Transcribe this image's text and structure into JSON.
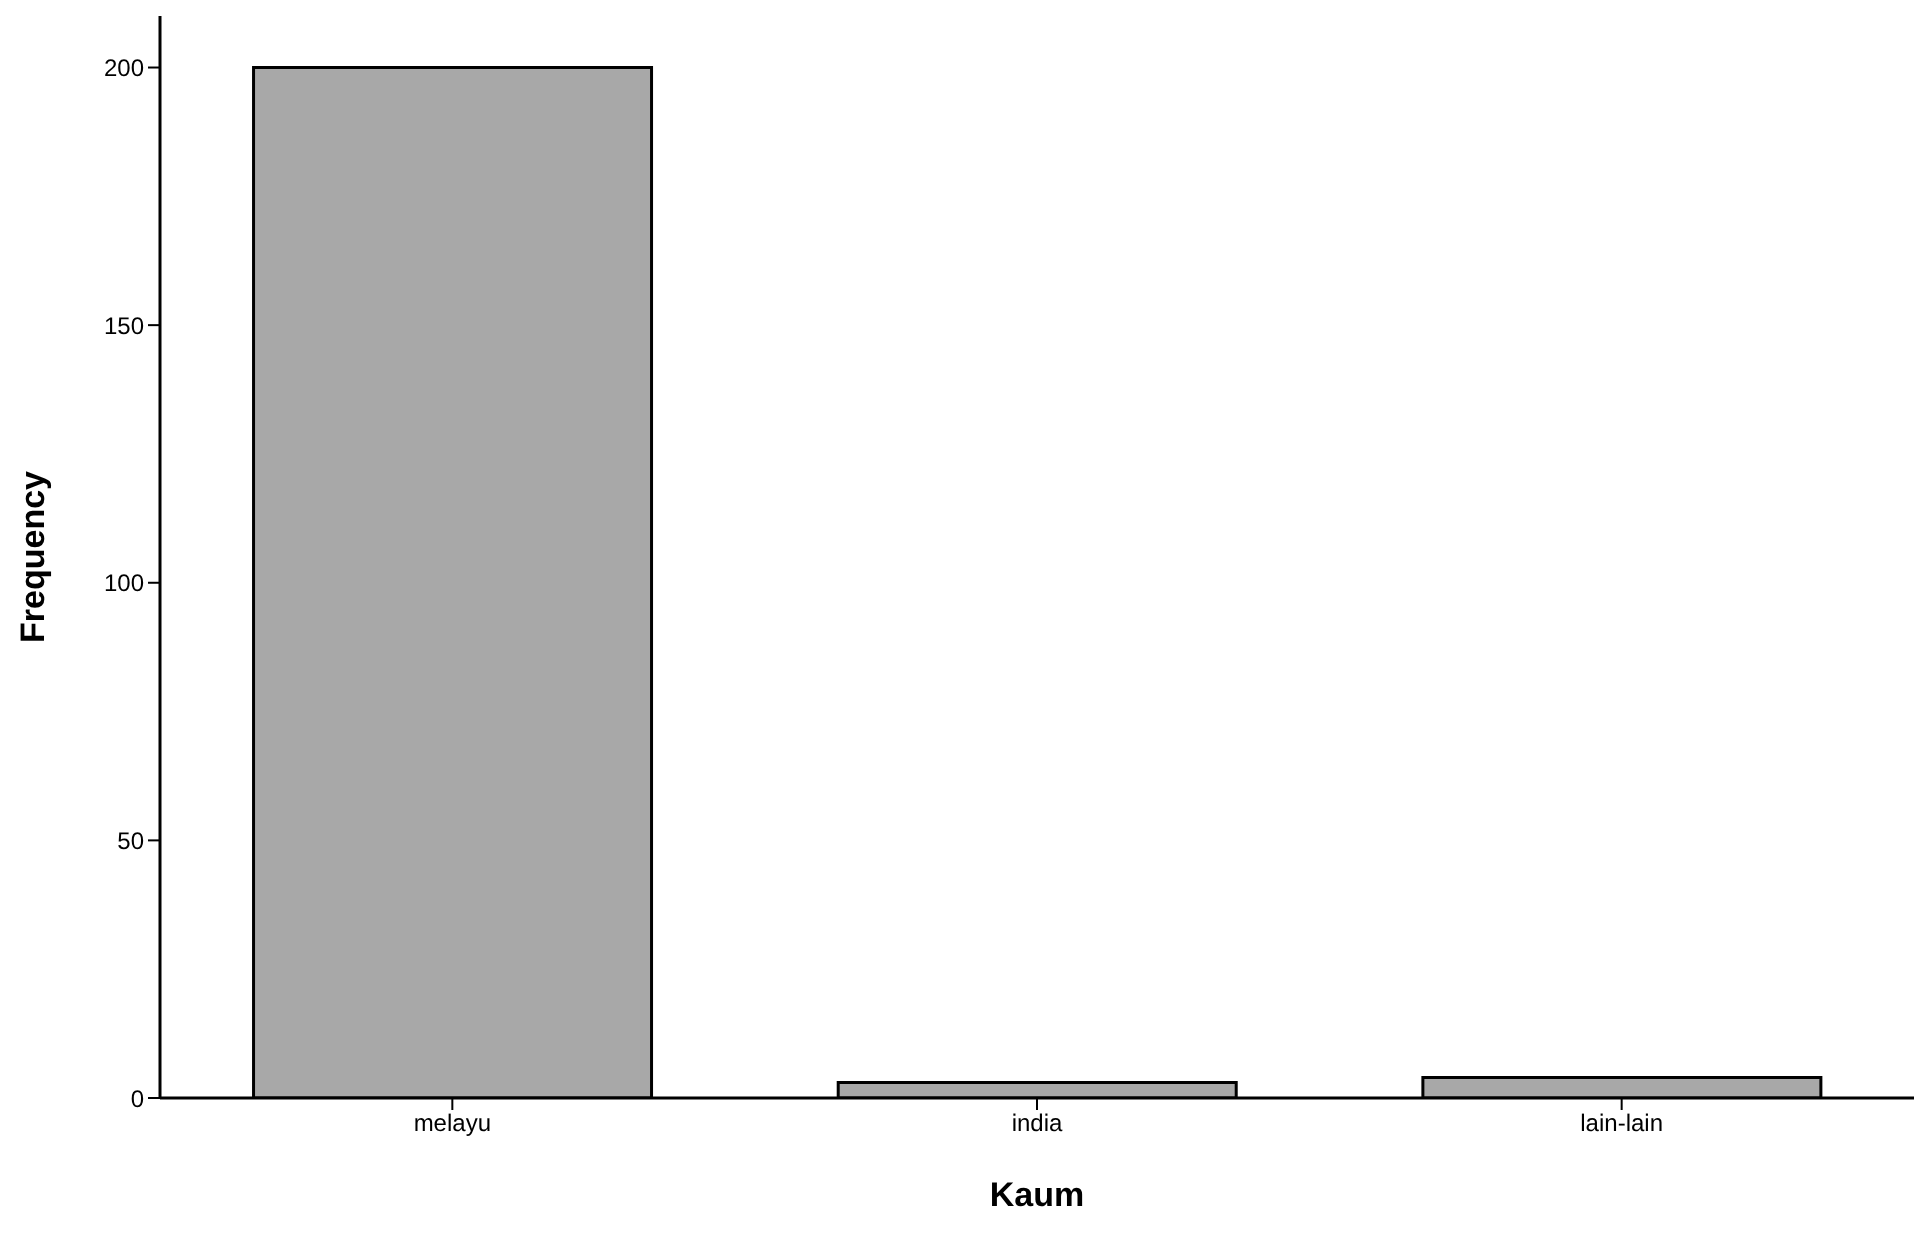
{
  "chart_data": {
    "type": "bar",
    "xlabel": "Kaum",
    "ylabel": "Frequency",
    "categories": [
      "melayu",
      "india",
      "lain-lain"
    ],
    "values": [
      200,
      3,
      4
    ],
    "color": "#a8a8a8",
    "ylim": [
      0,
      210
    ],
    "yticks": [
      0,
      50,
      100,
      150,
      200
    ],
    "grid": false,
    "legend": false
  }
}
